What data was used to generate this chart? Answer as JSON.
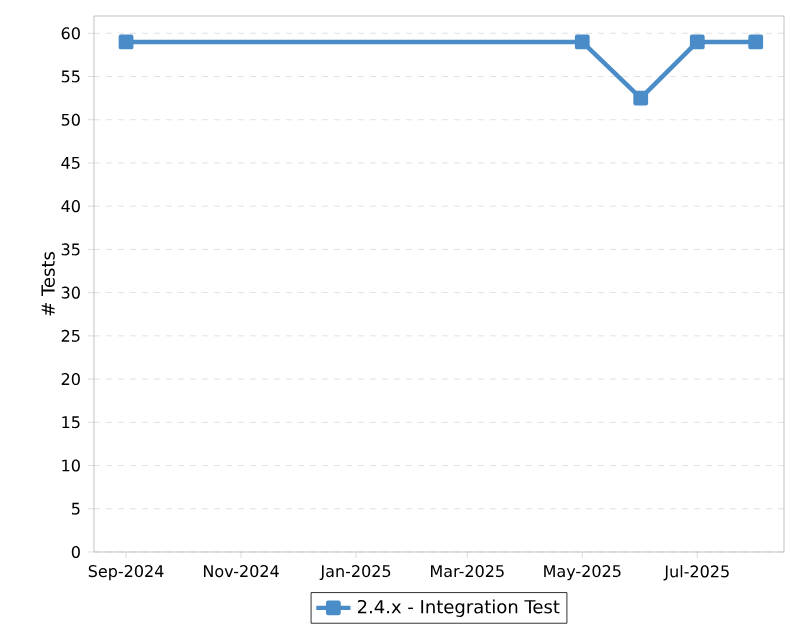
{
  "chart_data": {
    "type": "line",
    "ylabel": "# Tests",
    "x": [
      "2024-09",
      "2025-05",
      "2025-06",
      "2025-07",
      "2025-08"
    ],
    "series": [
      {
        "name": "2.4.x - Integration Test",
        "color": "#4a8cc8",
        "values": [
          59,
          59,
          52.5,
          59,
          59
        ]
      }
    ],
    "xlim": [
      "2024-08-15",
      "2025-08-16"
    ],
    "xticks": [
      {
        "value": "2024-09",
        "label": "Sep-2024"
      },
      {
        "value": "2024-11",
        "label": "Nov-2024"
      },
      {
        "value": "2025-01",
        "label": "Jan-2025"
      },
      {
        "value": "2025-03",
        "label": "Mar-2025"
      },
      {
        "value": "2025-05",
        "label": "May-2025"
      },
      {
        "value": "2025-07",
        "label": "Jul-2025"
      }
    ],
    "ylim": [
      0,
      62
    ],
    "yticks": [
      0,
      5,
      10,
      15,
      20,
      25,
      30,
      35,
      40,
      45,
      50,
      55,
      60
    ],
    "grid": "y",
    "legend": "bottom",
    "marker": "square",
    "line_style": "solid"
  }
}
